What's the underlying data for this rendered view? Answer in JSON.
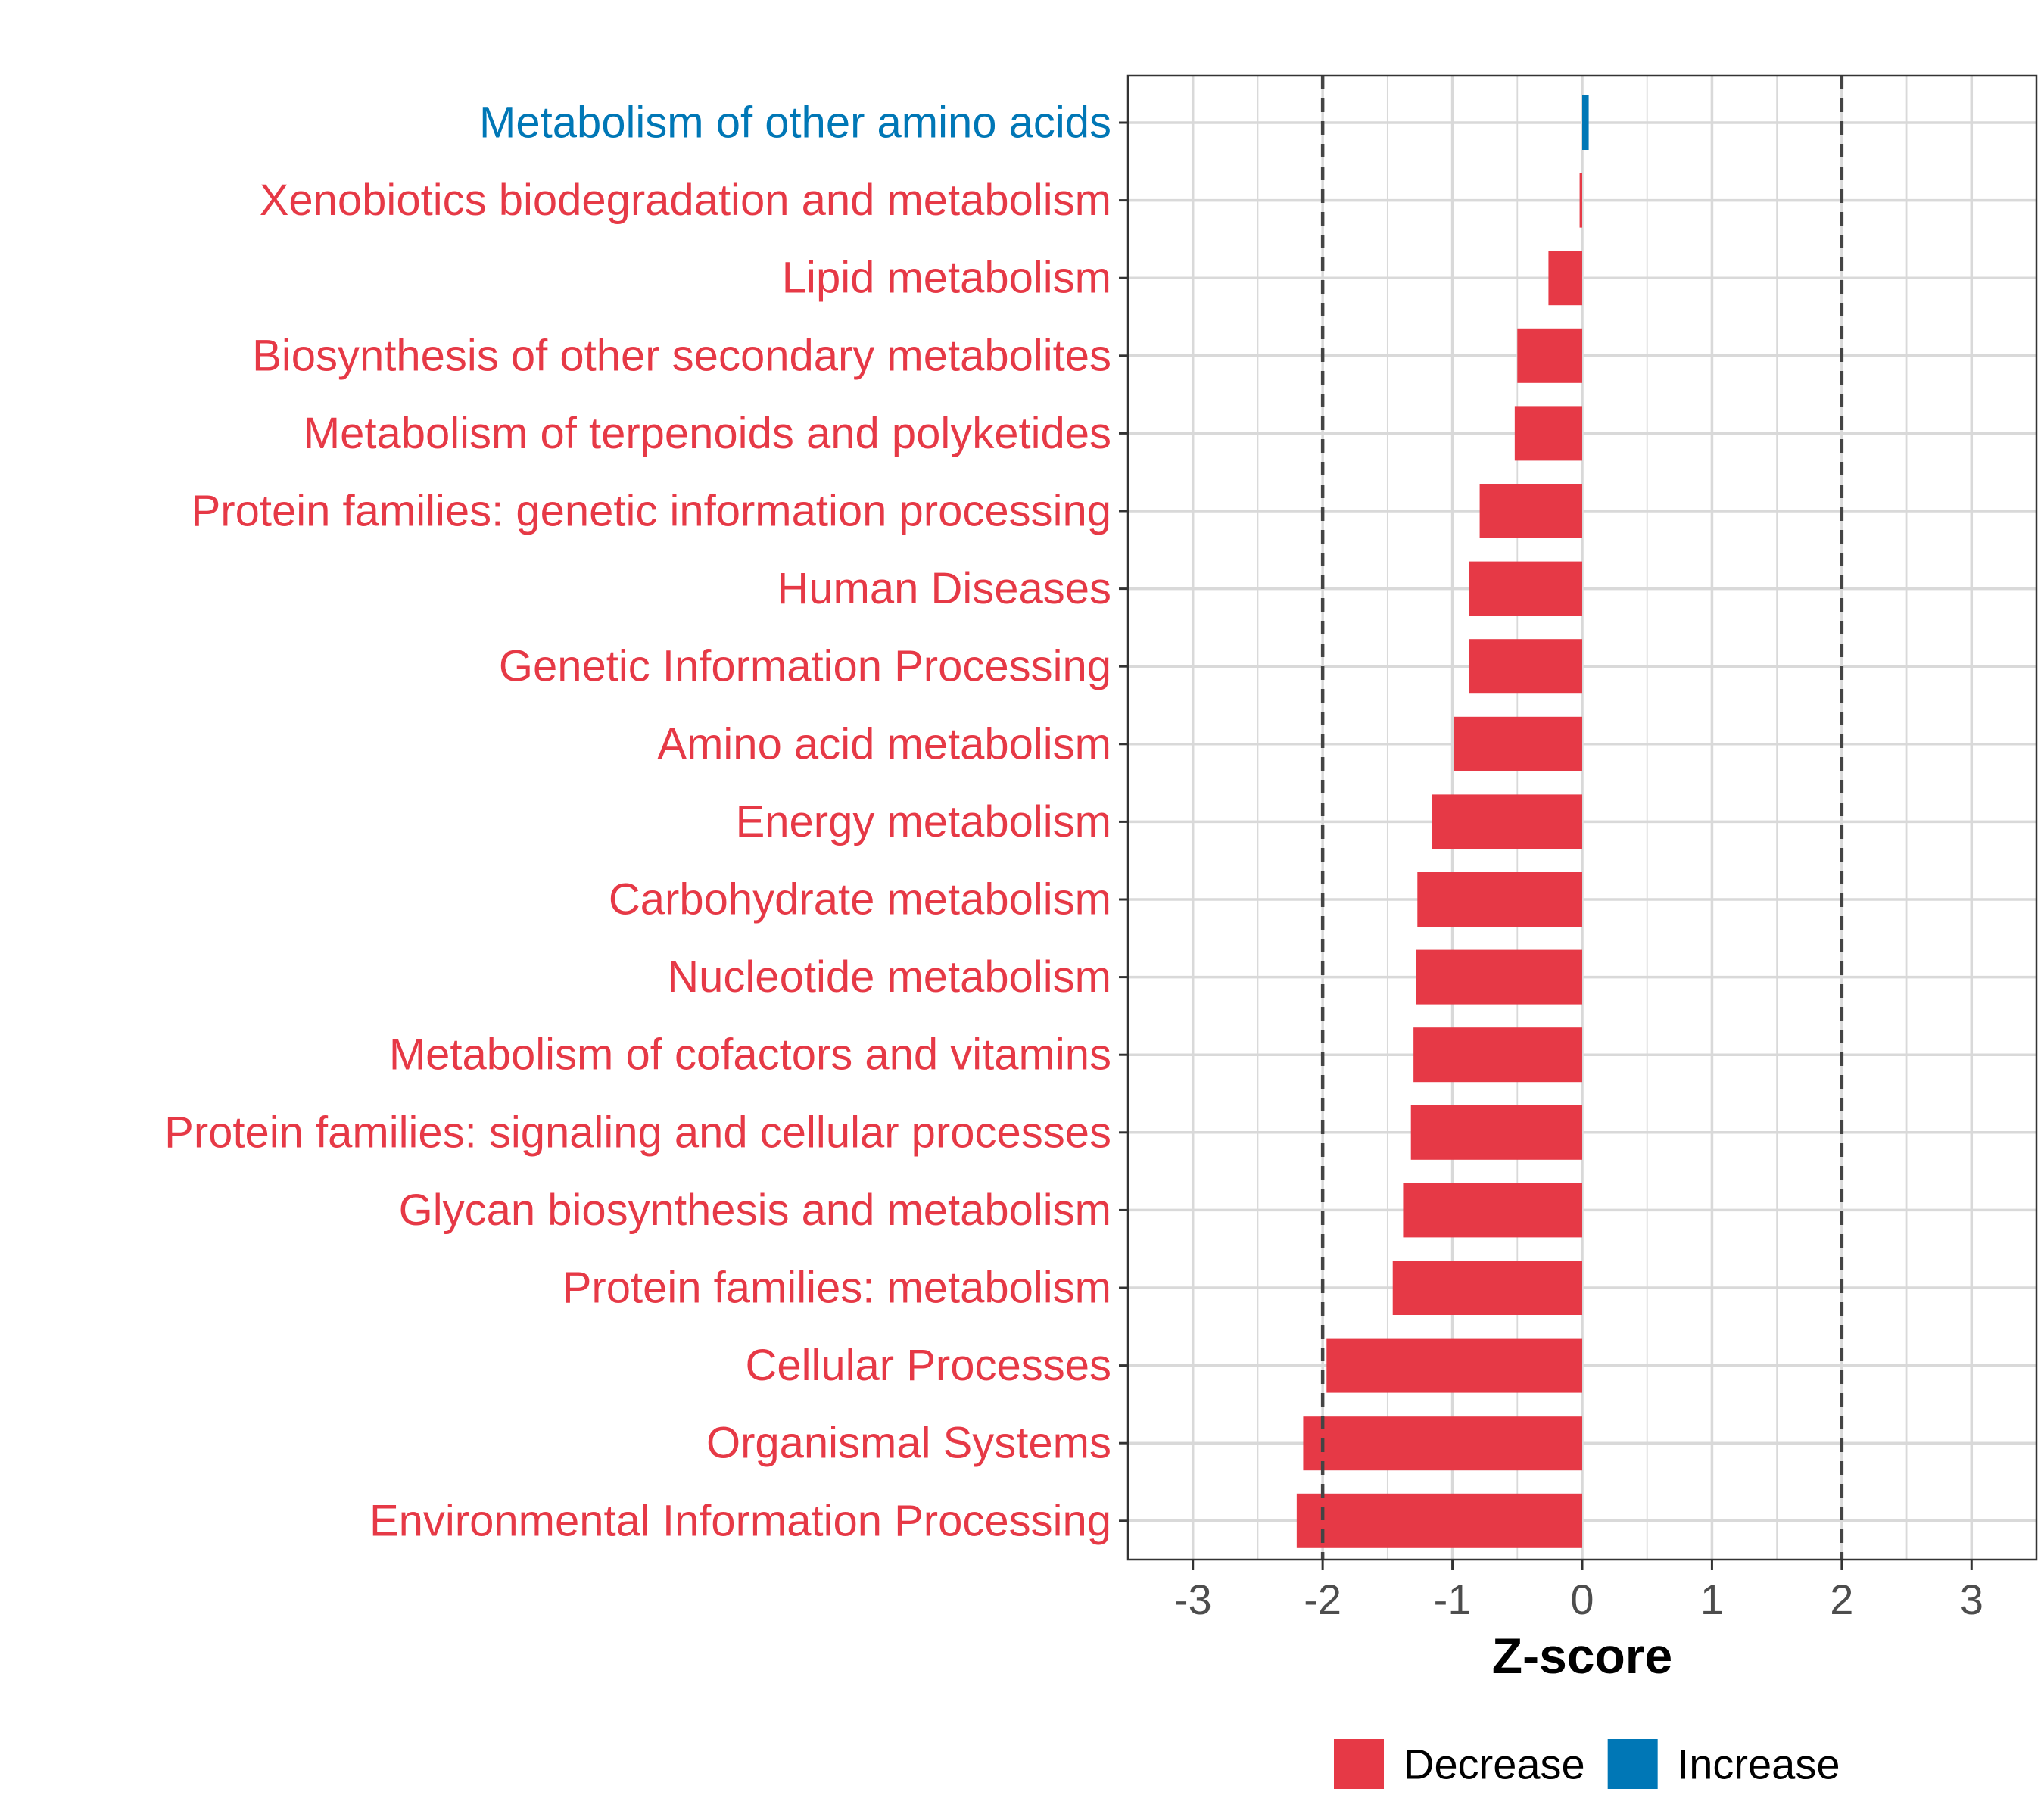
{
  "chart_data": {
    "type": "bar",
    "orientation": "horizontal",
    "title": "",
    "xlabel": "Z-score",
    "ylabel": "",
    "xlim": [
      -3.5,
      3.5
    ],
    "xticks": [
      -3,
      -2,
      -1,
      0,
      1,
      2,
      3
    ],
    "xtick_labels": [
      "-3",
      "-2",
      "-1",
      "0",
      "1",
      "2",
      "3"
    ],
    "reference_lines": [
      -2,
      2
    ],
    "grid": true,
    "legend_position": "bottom",
    "legend": [
      {
        "label": "Decrease",
        "color": "#e63946"
      },
      {
        "label": "Increase",
        "color": "#0077b6"
      }
    ],
    "categories": [
      "Metabolism of other amino acids",
      "Xenobiotics biodegradation and metabolism",
      "Lipid metabolism",
      "Biosynthesis of other secondary metabolites",
      "Metabolism of terpenoids and polyketides",
      "Protein families: genetic information processing",
      "Human Diseases",
      "Genetic Information Processing",
      "Amino acid metabolism",
      "Energy metabolism",
      "Carbohydrate metabolism",
      "Nucleotide metabolism",
      "Metabolism of cofactors and vitamins",
      "Protein families: signaling and cellular processes",
      "Glycan biosynthesis and metabolism",
      "Protein families: metabolism",
      "Cellular Processes",
      "Organismal Systems",
      "Environmental Information Processing"
    ],
    "values": [
      0.05,
      -0.02,
      -0.26,
      -0.5,
      -0.52,
      -0.79,
      -0.87,
      -0.87,
      -0.99,
      -1.16,
      -1.27,
      -1.28,
      -1.3,
      -1.32,
      -1.38,
      -1.46,
      -1.97,
      -2.15,
      -2.2
    ],
    "direction": [
      "Increase",
      "Decrease",
      "Decrease",
      "Decrease",
      "Decrease",
      "Decrease",
      "Decrease",
      "Decrease",
      "Decrease",
      "Decrease",
      "Decrease",
      "Decrease",
      "Decrease",
      "Decrease",
      "Decrease",
      "Decrease",
      "Decrease",
      "Decrease",
      "Decrease"
    ]
  }
}
